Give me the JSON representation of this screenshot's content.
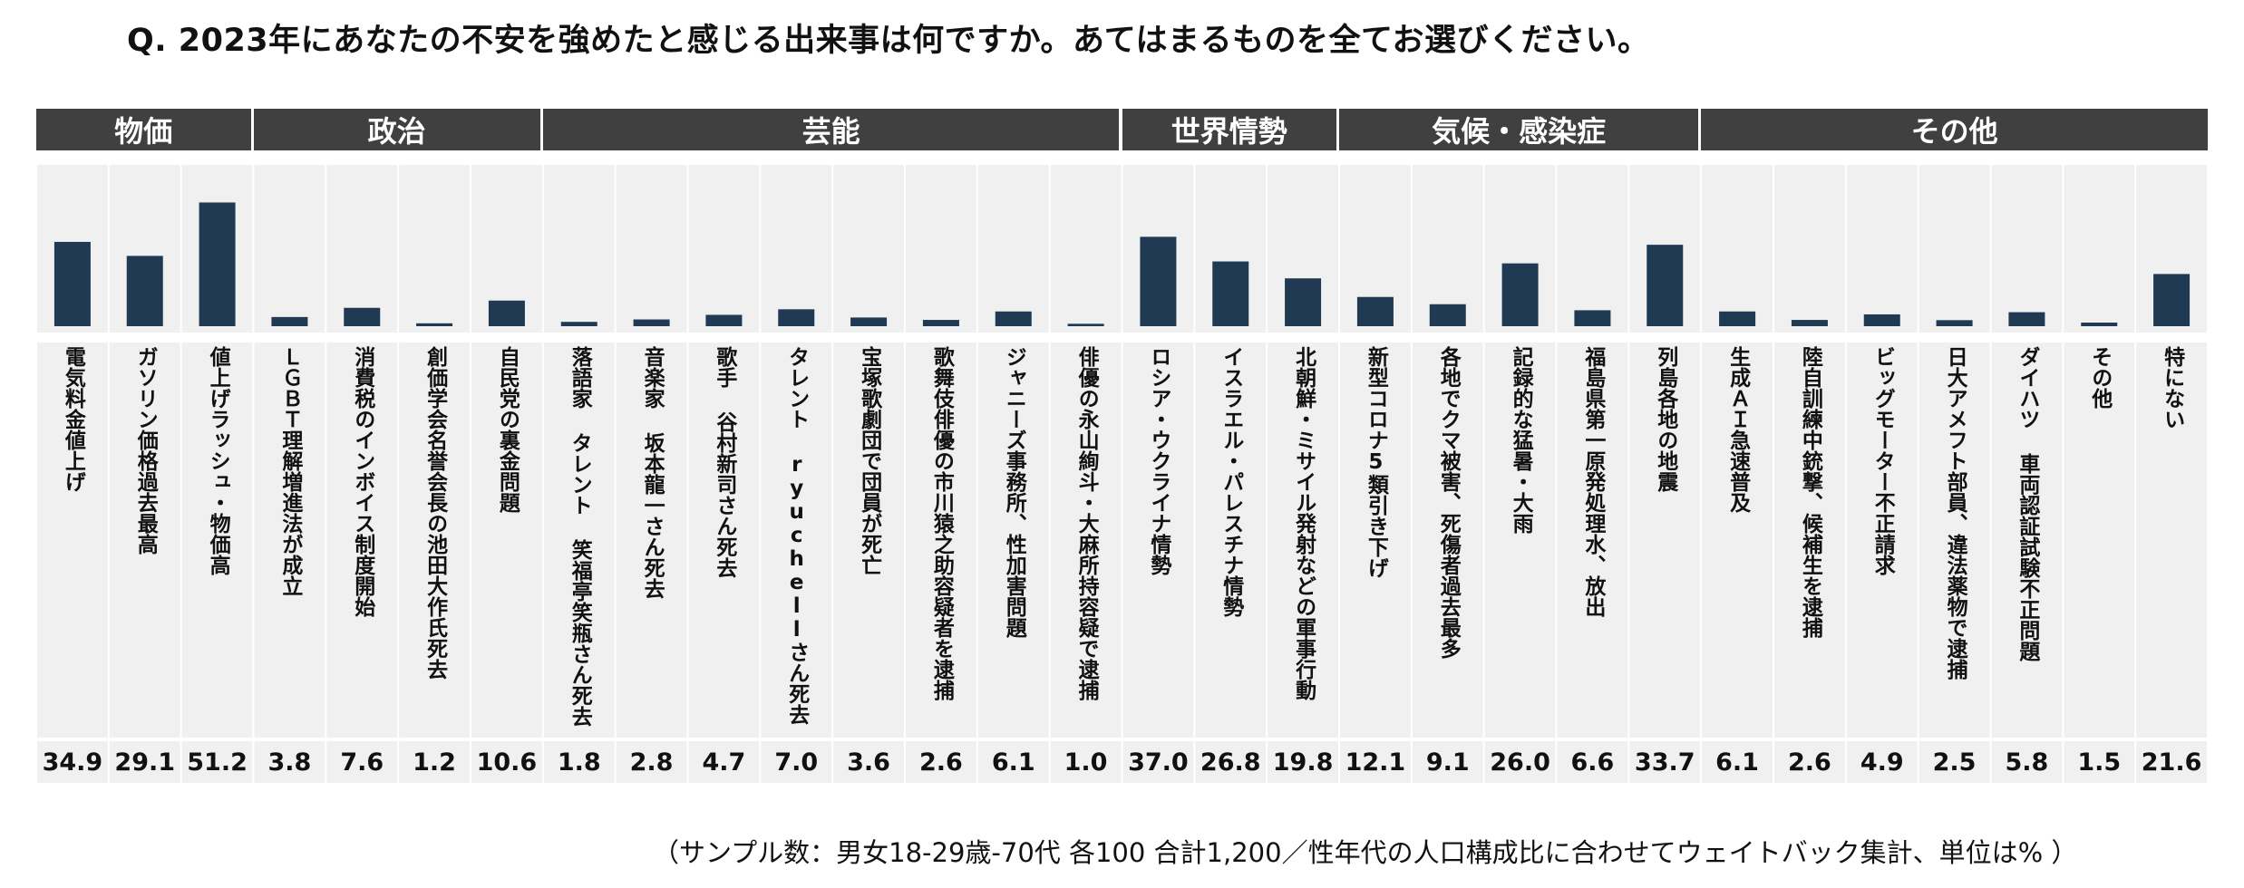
{
  "title": "Q. 2023年にあなたの不安を強めたと感じる出来事は何ですか。あてはまるものを全てお選びください。",
  "groups": [
    {
      "label": "物価",
      "span": 3
    },
    {
      "label": "政治",
      "span": 4
    },
    {
      "label": "芸能",
      "span": 8
    },
    {
      "label": "世界情勢",
      "span": 3
    },
    {
      "label": "気候・感染症",
      "span": 5
    },
    {
      "label": "その他",
      "span": 7
    }
  ],
  "chart_data": {
    "type": "bar",
    "categories": [
      "電気料金値上げ",
      "ガソリン価格過去最高",
      "値上げラッシュ・物価高",
      "ＬＧＢＴ理解増進法が成立",
      "消費税のインボイス制度開始",
      "創価学会名誉会長の池田大作氏死去",
      "自民党の裏金問題",
      "落語家 タレント 笑福亭笑瓶さん死去",
      "音楽家 坂本龍一さん死去",
      "歌手 谷村新司さん死去",
      "タレント ryuchellさん死去",
      "宝塚歌劇団で団員が死亡",
      "歌舞伎俳優の市川猿之助容疑者を逮捕",
      "ジャニーズ事務所、性加害問題",
      "俳優の永山絢斗・大麻所持容疑で逮捕",
      "ロシア・ウクライナ情勢",
      "イスラエル・パレスチナ情勢",
      "北朝鮮・ミサイル発射などの軍事行動",
      "新型コロナ5類引き下げ",
      "各地でクマ被害、死傷者過去最多",
      "記録的な猛暑・大雨",
      "福島県第一原発処理水、放出",
      "列島各地の地震",
      "生成ＡＩ急速普及",
      "陸自訓練中銃撃、候補生を逮捕",
      "ビッグモーター不正請求",
      "日大アメフト部員、違法薬物で逮捕",
      "ダイハツ 車両認証試験不正問題",
      "その他",
      "特にない"
    ],
    "values": [
      34.9,
      29.1,
      51.2,
      3.8,
      7.6,
      1.2,
      10.6,
      1.8,
      2.8,
      4.7,
      7.0,
      3.6,
      2.6,
      6.1,
      1.0,
      37.0,
      26.8,
      19.8,
      12.1,
      9.1,
      26.0,
      6.6,
      33.7,
      6.1,
      2.6,
      4.9,
      2.5,
      5.8,
      1.5,
      21.6
    ],
    "value_labels": [
      "34.9",
      "29.1",
      "51.2",
      "3.8",
      "7.6",
      "1.2",
      "10.6",
      "1.8",
      "2.8",
      "4.7",
      "7.0",
      "3.6",
      "2.6",
      "6.1",
      "1.0",
      "37.0",
      "26.8",
      "19.8",
      "12.1",
      "9.1",
      "26.0",
      "6.6",
      "33.7",
      "6.1",
      "2.6",
      "4.9",
      "2.5",
      "5.8",
      "1.5",
      "21.6"
    ],
    "ylim": [
      0,
      60
    ],
    "grid": false,
    "colors": {
      "bar": "#1f3a52",
      "group_header": "#404040",
      "row_bg": "#f0f0f0",
      "divider": "#ffffff"
    }
  },
  "footnote": "（サンプル数：男女18-29歳-70代 各100 合計1,200／性年代の人口構成比に合わせてウェイトバック集計、単位は% ）"
}
